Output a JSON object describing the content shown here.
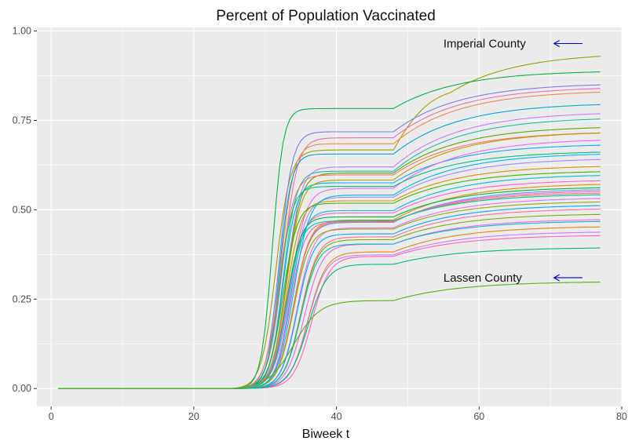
{
  "chart_data": {
    "type": "line",
    "title": "Percent of Population Vaccinated",
    "xlabel": "Biweek t",
    "ylabel": "",
    "xlim": [
      -2,
      80
    ],
    "ylim": [
      -0.05,
      1.01
    ],
    "x_ticks": [
      0,
      20,
      40,
      60,
      80
    ],
    "y_ticks": [
      0.0,
      0.25,
      0.5,
      0.75,
      1.0
    ],
    "x_tick_labels": [
      "0",
      "20",
      "40",
      "60",
      "80"
    ],
    "y_tick_labels": [
      "0.00",
      "0.25",
      "0.50",
      "0.75",
      "1.00"
    ],
    "grid": true,
    "legend": "none",
    "panel_background": "#ebebeb",
    "grid_color": "#ffffff",
    "x_start": 1,
    "x_end": 77,
    "series": [
      {
        "color": "#9aa300",
        "final": 0.94,
        "mid": 31.5,
        "steep": 1.0,
        "pre48": 0.71,
        "bump": 0.1
      },
      {
        "color": "#00b34a",
        "final": 0.89,
        "mid": 31.0,
        "steep": 1.3,
        "pre48": 0.88
      },
      {
        "color": "#7c7cf0",
        "final": 0.855,
        "mid": 32.0,
        "steep": 1.1,
        "pre48": 0.84
      },
      {
        "color": "#e96fb4",
        "final": 0.845,
        "mid": 32.5,
        "steep": 1.0,
        "pre48": 0.83
      },
      {
        "color": "#f2874a",
        "final": 0.835,
        "mid": 32.2,
        "steep": 1.1,
        "pre48": 0.82
      },
      {
        "color": "#00a7d2",
        "final": 0.8,
        "mid": 32.0,
        "steep": 1.2,
        "pre48": 0.82
      },
      {
        "color": "#c87dff",
        "final": 0.775,
        "mid": 33.0,
        "steep": 1.0,
        "pre48": 0.8
      },
      {
        "color": "#1cbfa4",
        "final": 0.76,
        "mid": 32.5,
        "steep": 1.1,
        "pre48": 0.8
      },
      {
        "color": "#54a800",
        "final": 0.735,
        "mid": 33.0,
        "steep": 1.0,
        "pre48": 0.82
      },
      {
        "color": "#f8766d",
        "final": 0.72,
        "mid": 32.0,
        "steep": 1.0,
        "pre48": 0.83
      },
      {
        "color": "#00b0f6",
        "final": 0.685,
        "mid": 32.5,
        "steep": 1.1,
        "pre48": 0.84
      },
      {
        "color": "#e76bf3",
        "final": 0.7,
        "mid": 33.5,
        "steep": 0.9,
        "pre48": 0.8
      },
      {
        "color": "#c09b00",
        "final": 0.72,
        "mid": 33.0,
        "steep": 1.0,
        "pre48": 0.81
      },
      {
        "color": "#00bf7d",
        "final": 0.665,
        "mid": 32.0,
        "steep": 1.1,
        "pre48": 0.85
      },
      {
        "color": "#a58aff",
        "final": 0.645,
        "mid": 33.5,
        "steep": 0.9,
        "pre48": 0.83
      },
      {
        "color": "#d89000",
        "final": 0.625,
        "mid": 33.0,
        "steep": 1.0,
        "pre48": 0.84
      },
      {
        "color": "#39b600",
        "final": 0.61,
        "mid": 32.5,
        "steep": 1.0,
        "pre48": 0.85
      },
      {
        "color": "#00bcd8",
        "final": 0.6,
        "mid": 33.5,
        "steep": 1.0,
        "pre48": 0.83
      },
      {
        "color": "#fd61d1",
        "final": 0.585,
        "mid": 33.0,
        "steep": 0.9,
        "pre48": 0.84
      },
      {
        "color": "#e38900",
        "final": 0.575,
        "mid": 34.0,
        "steep": 0.9,
        "pre48": 0.82
      },
      {
        "color": "#00ba38",
        "final": 0.565,
        "mid": 33.0,
        "steep": 1.0,
        "pre48": 0.85
      },
      {
        "color": "#619cff",
        "final": 0.56,
        "mid": 34.0,
        "steep": 0.9,
        "pre48": 0.83
      },
      {
        "color": "#ff62bc",
        "final": 0.555,
        "mid": 33.5,
        "steep": 1.0,
        "pre48": 0.84
      },
      {
        "color": "#f8766d",
        "final": 0.55,
        "mid": 34.0,
        "steep": 0.9,
        "pre48": 0.85
      },
      {
        "color": "#00c19f",
        "final": 0.545,
        "mid": 33.0,
        "steep": 1.0,
        "pre48": 0.86
      },
      {
        "color": "#db72fb",
        "final": 0.535,
        "mid": 34.5,
        "steep": 0.9,
        "pre48": 0.84
      },
      {
        "color": "#93aa00",
        "final": 0.525,
        "mid": 34.0,
        "steep": 0.9,
        "pre48": 0.85
      },
      {
        "color": "#00a9ff",
        "final": 0.515,
        "mid": 34.5,
        "steep": 0.9,
        "pre48": 0.84
      },
      {
        "color": "#ff6c91",
        "final": 0.505,
        "mid": 35.0,
        "steep": 0.85,
        "pre48": 0.84
      },
      {
        "color": "#7cae00",
        "final": 0.49,
        "mid": 35.0,
        "steep": 0.85,
        "pre48": 0.85
      },
      {
        "color": "#f564e3",
        "final": 0.475,
        "mid": 35.5,
        "steep": 0.8,
        "pre48": 0.85
      },
      {
        "color": "#00bfc4",
        "final": 0.47,
        "mid": 35.0,
        "steep": 0.85,
        "pre48": 0.86
      },
      {
        "color": "#e68613",
        "final": 0.455,
        "mid": 36.0,
        "steep": 0.8,
        "pre48": 0.84
      },
      {
        "color": "#c77cff",
        "final": 0.44,
        "mid": 36.0,
        "steep": 0.8,
        "pre48": 0.85
      },
      {
        "color": "#00b6eb",
        "final": 0.66,
        "mid": 34.0,
        "steep": 0.9,
        "pre48": 0.82
      },
      {
        "color": "#ff61c3",
        "final": 0.43,
        "mid": 36.5,
        "steep": 0.8,
        "pre48": 0.86
      },
      {
        "color": "#00be67",
        "final": 0.395,
        "mid": 36.0,
        "steep": 0.75,
        "pre48": 0.88
      },
      {
        "color": "#52b415",
        "final": 0.3,
        "mid": 34.0,
        "steep": 0.55,
        "pre48": 0.82
      }
    ],
    "annotations": [
      {
        "text": "Imperial County",
        "x": 55,
        "y": 0.965,
        "arrow_from": 74.5,
        "arrow_to": 70.5,
        "arrow_y": 0.965
      },
      {
        "text": "Lassen County",
        "x": 55,
        "y": 0.31,
        "arrow_from": 74.5,
        "arrow_to": 70.5,
        "arrow_y": 0.31
      }
    ],
    "arrow_color": "#0000cc"
  }
}
